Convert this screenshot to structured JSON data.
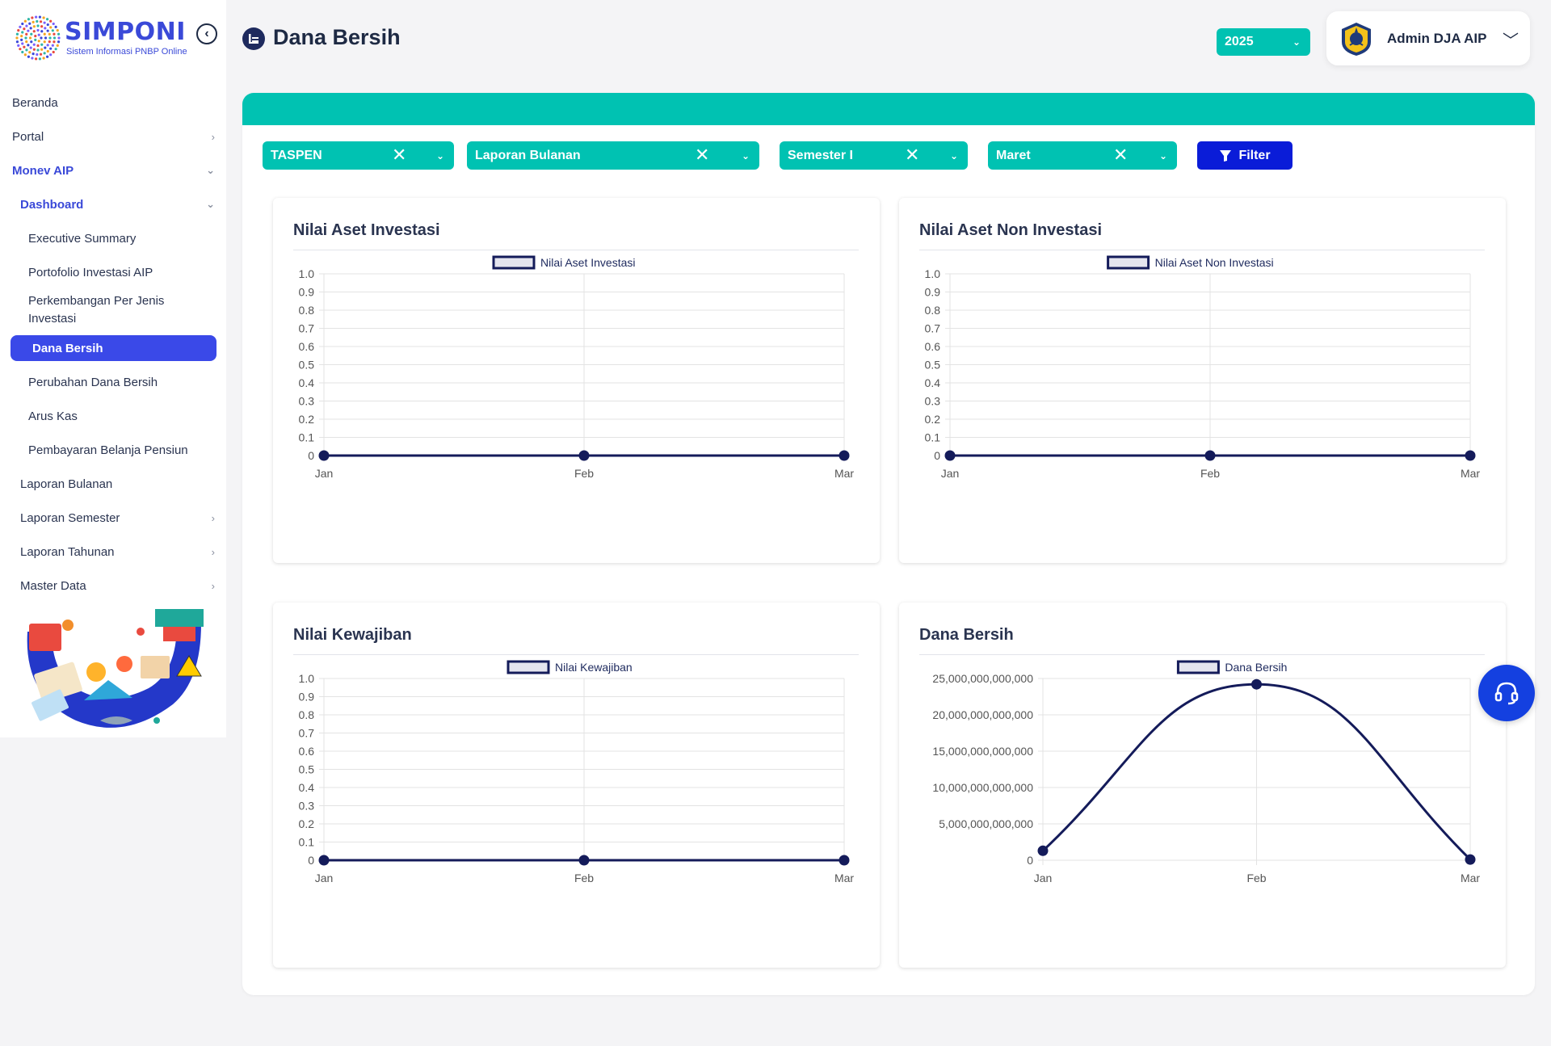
{
  "brand": {
    "name": "SIMPONI",
    "subtitle": "Sistem Informasi PNBP Online",
    "accent": "#3a49d8",
    "teal": "#00c2b2"
  },
  "sidebar": {
    "items": [
      {
        "label": "Beranda",
        "level": 0,
        "chevron": ""
      },
      {
        "label": "Portal",
        "level": 0,
        "chevron": "right"
      },
      {
        "label": "Monev AIP",
        "level": 0,
        "chevron": "down",
        "state": "active-parent"
      },
      {
        "label": "Dashboard",
        "level": 1,
        "chevron": "down",
        "state": "active-parent"
      },
      {
        "label": "Executive Summary",
        "level": 2,
        "chevron": ""
      },
      {
        "label": "Portofolio Investasi AIP",
        "level": 2,
        "chevron": ""
      },
      {
        "label": "Perkembangan Per Jenis Investasi",
        "level": 2,
        "chevron": "",
        "multiline": true
      },
      {
        "label": "Dana Bersih",
        "level": 2,
        "chevron": "",
        "state": "active"
      },
      {
        "label": "Perubahan Dana Bersih",
        "level": 2,
        "chevron": ""
      },
      {
        "label": "Arus Kas",
        "level": 2,
        "chevron": ""
      },
      {
        "label": "Pembayaran Belanja Pensiun",
        "level": 2,
        "chevron": ""
      },
      {
        "label": "Laporan Bulanan",
        "level": 1,
        "chevron": ""
      },
      {
        "label": "Laporan Semester",
        "level": 1,
        "chevron": "right"
      },
      {
        "label": "Laporan Tahunan",
        "level": 1,
        "chevron": "right"
      },
      {
        "label": "Master Data",
        "level": 1,
        "chevron": "right"
      }
    ]
  },
  "header": {
    "title": "Dana Bersih",
    "year": "2025",
    "user": "Admin DJA AIP"
  },
  "filters": {
    "entity": "TASPEN",
    "report": "Laporan Bulanan",
    "semester": "Semester I",
    "month": "Maret",
    "button": "Filter"
  },
  "chart_data": [
    {
      "type": "line",
      "title": "Nilai Aset Investasi",
      "categories": [
        "Jan",
        "Feb",
        "Mar"
      ],
      "series": [
        {
          "name": "Nilai Aset Investasi",
          "values": [
            0,
            0,
            0
          ]
        }
      ],
      "ylim": [
        0,
        1
      ],
      "yticks": [
        "0",
        "0.1",
        "0.2",
        "0.3",
        "0.4",
        "0.5",
        "0.6",
        "0.7",
        "0.8",
        "0.9",
        "1.0"
      ],
      "legend": "top-center",
      "grid": true,
      "line_color": "#141b5a"
    },
    {
      "type": "line",
      "title": "Nilai Aset Non Investasi",
      "categories": [
        "Jan",
        "Feb",
        "Mar"
      ],
      "series": [
        {
          "name": "Nilai Aset Non Investasi",
          "values": [
            0,
            0,
            0
          ]
        }
      ],
      "ylim": [
        0,
        1
      ],
      "yticks": [
        "0",
        "0.1",
        "0.2",
        "0.3",
        "0.4",
        "0.5",
        "0.6",
        "0.7",
        "0.8",
        "0.9",
        "1.0"
      ],
      "legend": "top-center",
      "grid": true,
      "line_color": "#141b5a"
    },
    {
      "type": "line",
      "title": "Nilai Kewajiban",
      "categories": [
        "Jan",
        "Feb",
        "Mar"
      ],
      "series": [
        {
          "name": "Nilai Kewajiban",
          "values": [
            0,
            0,
            0
          ]
        }
      ],
      "ylim": [
        0,
        1
      ],
      "yticks": [
        "0",
        "0.1",
        "0.2",
        "0.3",
        "0.4",
        "0.5",
        "0.6",
        "0.7",
        "0.8",
        "0.9",
        "1.0"
      ],
      "legend": "top-center",
      "grid": true,
      "line_color": "#141b5a"
    },
    {
      "type": "line",
      "title": "Dana Bersih",
      "categories": [
        "Jan",
        "Feb",
        "Mar"
      ],
      "series": [
        {
          "name": "Dana Bersih",
          "values": [
            1300000000000,
            24200000000000,
            100000000000
          ]
        }
      ],
      "ylim": [
        0,
        25000000000000
      ],
      "yticks": [
        "0",
        "5,000,000,000,000",
        "10,000,000,000,000",
        "15,000,000,000,000",
        "20,000,000,000,000",
        "25,000,000,000,000"
      ],
      "legend": "top-center",
      "grid": true,
      "smooth": true,
      "line_color": "#141b5a"
    }
  ]
}
